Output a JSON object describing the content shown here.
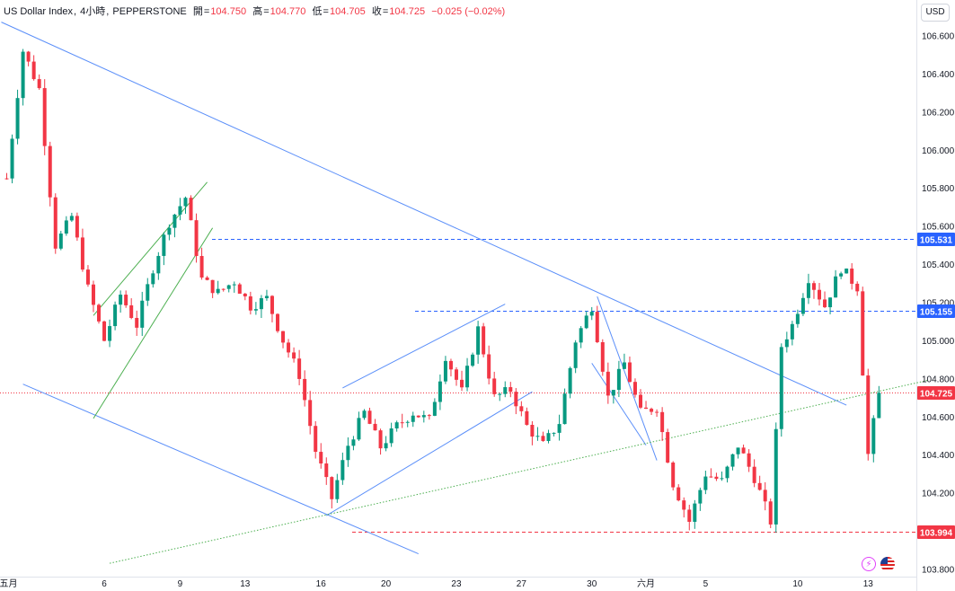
{
  "header": {
    "symbol": "US Dollar Index",
    "interval": "4小時",
    "source": "PEPPERSTONE",
    "open_label": "開",
    "open": "104.750",
    "high_label": "高",
    "high": "104.770",
    "low_label": "低",
    "low": "104.705",
    "close_label": "收",
    "close": "104.725",
    "change": "−0.025 (−0.02%)"
  },
  "currency_button": "USD",
  "colors": {
    "up": "#089981",
    "down": "#f23645",
    "trendline": "#5b8ff9",
    "channel": "#4caf50",
    "price_tag_blue": "#2962ff",
    "price_tag_red": "#f23645"
  },
  "icons": [
    "lightning-icon",
    "us-flag-icon"
  ],
  "chart_data": {
    "type": "candlestick",
    "ylim": [
      103.76,
      106.72
    ],
    "y_ticks": [
      "106.600",
      "106.400",
      "106.200",
      "106.000",
      "105.800",
      "105.600",
      "105.400",
      "105.200",
      "105.000",
      "104.800",
      "104.600",
      "104.400",
      "104.200",
      "103.800"
    ],
    "x_ticks": [
      "五月",
      "6",
      "9",
      "13",
      "16",
      "20",
      "23",
      "27",
      "30",
      "六月",
      "5",
      "10",
      "13"
    ],
    "price_levels": [
      {
        "label": "105.531",
        "value": 105.531,
        "style": "dashed",
        "color": "#2962ff"
      },
      {
        "label": "105.155",
        "value": 105.155,
        "style": "dashed",
        "color": "#2962ff"
      },
      {
        "label": "104.725",
        "value": 104.725,
        "style": "dotted",
        "color": "#f23645"
      },
      {
        "label": "103.994",
        "value": 103.994,
        "style": "dashed",
        "color": "#f23645"
      }
    ],
    "anchors": [
      [
        0,
        105.85
      ],
      [
        3,
        106.52
      ],
      [
        6,
        106.32
      ],
      [
        9,
        105.5
      ],
      [
        12,
        105.65
      ],
      [
        15,
        105.27
      ],
      [
        18,
        105.0
      ],
      [
        21,
        105.24
      ],
      [
        24,
        105.08
      ],
      [
        27,
        105.38
      ],
      [
        30,
        105.62
      ],
      [
        33,
        105.75
      ],
      [
        36,
        105.32
      ],
      [
        39,
        105.25
      ],
      [
        42,
        105.31
      ],
      [
        45,
        105.18
      ],
      [
        48,
        105.22
      ],
      [
        51,
        105.0
      ],
      [
        54,
        104.82
      ],
      [
        57,
        104.42
      ],
      [
        60,
        104.17
      ],
      [
        63,
        104.45
      ],
      [
        66,
        104.62
      ],
      [
        69,
        104.44
      ],
      [
        72,
        104.55
      ],
      [
        75,
        104.62
      ],
      [
        78,
        104.58
      ],
      [
        81,
        104.92
      ],
      [
        84,
        104.73
      ],
      [
        87,
        105.06
      ],
      [
        90,
        104.7
      ],
      [
        93,
        104.74
      ],
      [
        96,
        104.55
      ],
      [
        99,
        104.45
      ],
      [
        102,
        104.57
      ],
      [
        105,
        105.0
      ],
      [
        108,
        105.18
      ],
      [
        111,
        104.7
      ],
      [
        114,
        104.88
      ],
      [
        117,
        104.62
      ],
      [
        120,
        104.65
      ],
      [
        123,
        104.25
      ],
      [
        126,
        104.05
      ],
      [
        129,
        104.3
      ],
      [
        132,
        104.26
      ],
      [
        135,
        104.45
      ],
      [
        138,
        104.28
      ],
      [
        141,
        104.05
      ],
      [
        143,
        104.97
      ],
      [
        145,
        105.08
      ],
      [
        148,
        105.33
      ],
      [
        151,
        105.18
      ],
      [
        154,
        105.38
      ],
      [
        157,
        105.28
      ],
      [
        159,
        104.4
      ],
      [
        161,
        104.73
      ]
    ],
    "trendlines": [
      {
        "from": [
          -1,
          106.67
        ],
        "to": [
          155,
          104.66
        ],
        "color": "#5b8ff9"
      },
      {
        "from": [
          3,
          104.77
        ],
        "to": [
          76,
          103.88
        ],
        "color": "#5b8ff9"
      },
      {
        "from": [
          59,
          104.08
        ],
        "to": [
          97,
          104.73
        ],
        "color": "#5b8ff9"
      },
      {
        "from": [
          62,
          104.75
        ],
        "to": [
          92,
          105.19
        ],
        "color": "#5b8ff9"
      },
      {
        "from": [
          109,
          105.23
        ],
        "to": [
          120,
          104.37
        ],
        "color": "#5b8ff9"
      },
      {
        "from": [
          108,
          104.88
        ],
        "to": [
          118,
          104.45
        ],
        "color": "#5b8ff9"
      },
      {
        "from": [
          16,
          105.13
        ],
        "to": [
          37,
          105.83
        ],
        "color": "#4caf50"
      },
      {
        "from": [
          16,
          104.59
        ],
        "to": [
          38,
          105.59
        ],
        "color": "#4caf50"
      },
      {
        "from": [
          19,
          103.83
        ],
        "to": [
          170,
          104.79
        ],
        "color": "#4caf50",
        "style": "dotted"
      }
    ]
  }
}
